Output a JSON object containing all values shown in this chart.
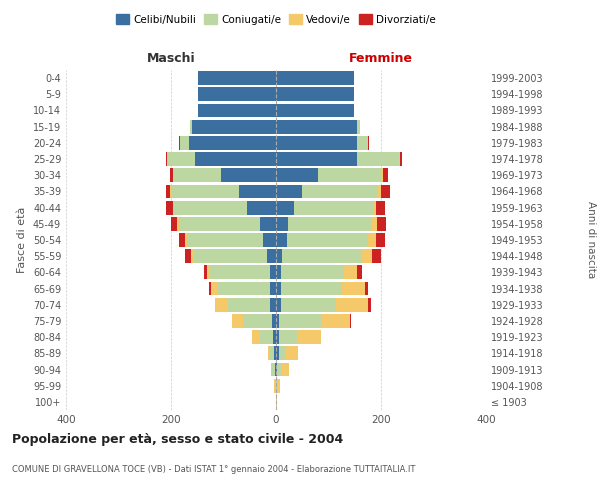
{
  "age_groups": [
    "100+",
    "95-99",
    "90-94",
    "85-89",
    "80-84",
    "75-79",
    "70-74",
    "65-69",
    "60-64",
    "55-59",
    "50-54",
    "45-49",
    "40-44",
    "35-39",
    "30-34",
    "25-29",
    "20-24",
    "15-19",
    "10-14",
    "5-9",
    "0-4"
  ],
  "birth_years": [
    "≤ 1903",
    "1904-1908",
    "1909-1913",
    "1914-1918",
    "1919-1923",
    "1924-1928",
    "1929-1933",
    "1934-1938",
    "1939-1943",
    "1944-1948",
    "1949-1953",
    "1954-1958",
    "1959-1963",
    "1964-1968",
    "1969-1973",
    "1974-1978",
    "1979-1983",
    "1984-1988",
    "1989-1993",
    "1994-1998",
    "1999-2003"
  ],
  "male_celibi": [
    0,
    0,
    2,
    3,
    5,
    8,
    12,
    12,
    12,
    18,
    25,
    30,
    55,
    70,
    105,
    155,
    165,
    160,
    148,
    148,
    148
  ],
  "male_coniugati": [
    0,
    2,
    5,
    8,
    25,
    55,
    80,
    100,
    115,
    140,
    145,
    155,
    140,
    130,
    90,
    50,
    18,
    4,
    0,
    0,
    0
  ],
  "male_vedovi": [
    0,
    1,
    3,
    5,
    15,
    20,
    25,
    12,
    5,
    3,
    3,
    3,
    2,
    2,
    2,
    2,
    0,
    0,
    0,
    0,
    0
  ],
  "male_divorziati": [
    0,
    0,
    0,
    0,
    0,
    0,
    0,
    3,
    5,
    12,
    12,
    12,
    12,
    8,
    5,
    2,
    2,
    0,
    0,
    0,
    0
  ],
  "female_celibi": [
    0,
    0,
    2,
    5,
    5,
    5,
    10,
    10,
    10,
    12,
    20,
    22,
    35,
    50,
    80,
    155,
    155,
    155,
    148,
    148,
    148
  ],
  "female_coniugati": [
    0,
    2,
    8,
    12,
    35,
    80,
    105,
    115,
    120,
    150,
    155,
    160,
    150,
    145,
    120,
    80,
    20,
    5,
    0,
    0,
    0
  ],
  "female_vedovi": [
    2,
    5,
    15,
    25,
    45,
    55,
    60,
    45,
    25,
    20,
    15,
    10,
    5,
    5,
    3,
    2,
    0,
    0,
    0,
    0,
    0
  ],
  "female_divorziati": [
    0,
    0,
    0,
    0,
    0,
    2,
    5,
    5,
    8,
    18,
    18,
    18,
    18,
    18,
    10,
    3,
    2,
    0,
    0,
    0,
    0
  ],
  "colors": {
    "celibi": "#3b6fa0",
    "coniugati": "#bdd7a3",
    "vedovi": "#f5c96a",
    "divorziati": "#cc2222"
  },
  "xlim": 400,
  "title": "Popolazione per età, sesso e stato civile - 2004",
  "subtitle": "COMUNE DI GRAVELLONA TOCE (VB) - Dati ISTAT 1° gennaio 2004 - Elaborazione TUTTAITALIA.IT",
  "ylabel_left": "Fasce di età",
  "ylabel_right": "Anni di nascita",
  "xlabel_left": "Maschi",
  "xlabel_right": "Femmine"
}
